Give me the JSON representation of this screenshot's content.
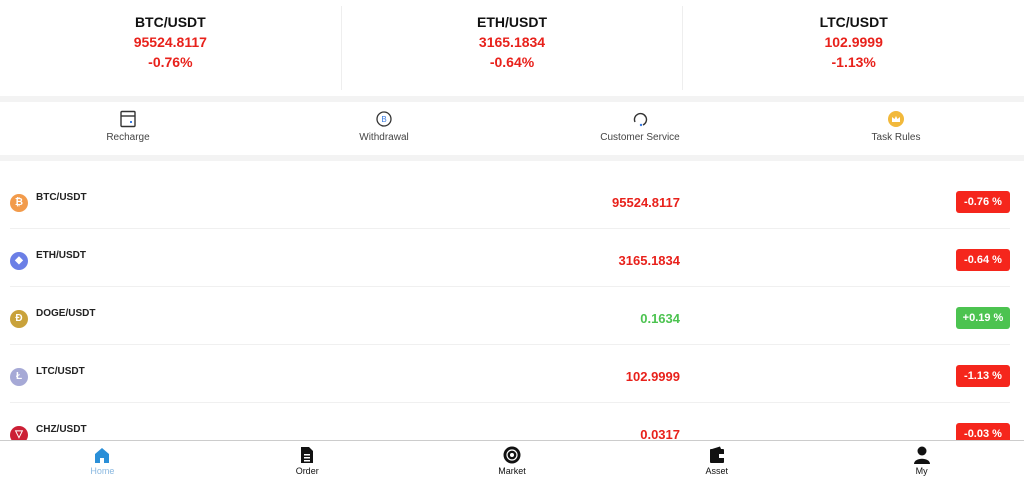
{
  "tickers": [
    {
      "pair": "BTC/USDT",
      "price": "95524.8117",
      "change": "-0.76%"
    },
    {
      "pair": "ETH/USDT",
      "price": "3165.1834",
      "change": "-0.64%"
    },
    {
      "pair": "LTC/USDT",
      "price": "102.9999",
      "change": "-1.13%"
    }
  ],
  "actions": [
    {
      "label": "Recharge",
      "icon": "wallet-card-icon"
    },
    {
      "label": "Withdrawal",
      "icon": "bitcoin-withdraw-icon"
    },
    {
      "label": "Customer Service",
      "icon": "headset-icon"
    },
    {
      "label": "Task Rules",
      "icon": "crown-icon"
    }
  ],
  "market": [
    {
      "pair": "BTC/USDT",
      "price": "95524.8117",
      "change": "-0.76 %",
      "trend": "down",
      "coin_color": "#f29b4b",
      "symbol": "₿"
    },
    {
      "pair": "ETH/USDT",
      "price": "3165.1834",
      "change": "-0.64 %",
      "trend": "down",
      "coin_color": "#6b7fe6",
      "symbol": "◆"
    },
    {
      "pair": "DOGE/USDT",
      "price": "0.1634",
      "change": "+0.19 %",
      "trend": "up",
      "coin_color": "#c9a23b",
      "symbol": "Ð"
    },
    {
      "pair": "LTC/USDT",
      "price": "102.9999",
      "change": "-1.13 %",
      "trend": "down",
      "coin_color": "#a6a9d6",
      "symbol": "Ł"
    },
    {
      "pair": "CHZ/USDT",
      "price": "0.0317",
      "change": "-0.03 %",
      "trend": "down",
      "coin_color": "#cc1f35",
      "symbol": "▽"
    }
  ],
  "colors": {
    "down": "#e8211b",
    "up": "#4cc350",
    "badge_down": "#f5261c",
    "badge_up": "#4cc350",
    "active_nav": "#2a8fd8"
  },
  "nav": [
    {
      "label": "Home",
      "icon": "home-icon",
      "active": true
    },
    {
      "label": "Order",
      "icon": "document-icon"
    },
    {
      "label": "Market",
      "icon": "market-icon"
    },
    {
      "label": "Asset",
      "icon": "wallet-icon"
    },
    {
      "label": "My",
      "icon": "user-icon"
    }
  ]
}
